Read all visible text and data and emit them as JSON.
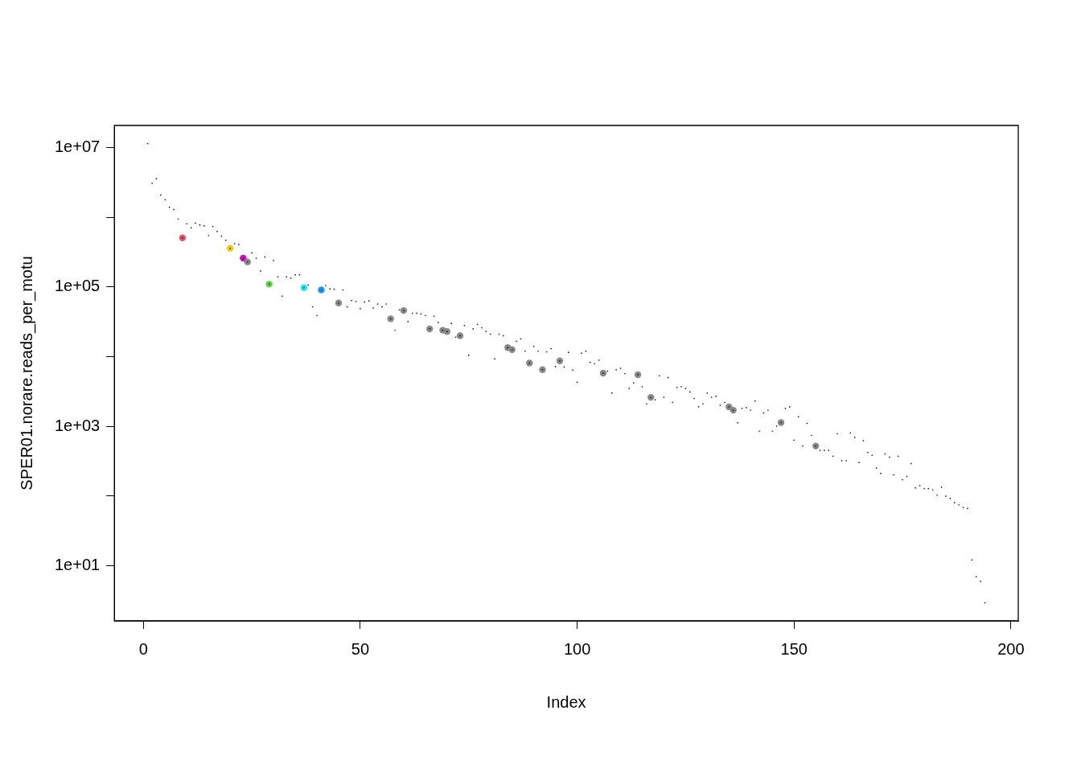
{
  "chart_data": {
    "type": "scatter",
    "xlabel": "Index",
    "ylabel": "SPER01.norare.reads_per_motu",
    "log": "y",
    "grid": false,
    "legend": false,
    "xlim": [
      -6.7,
      201.7
    ],
    "xticks": [
      0,
      50,
      100,
      150,
      200
    ],
    "ylim": [
      1.6,
      21000000
    ],
    "yticks": [
      {
        "value": 10,
        "label": "1e+01"
      },
      {
        "value": 100,
        "label": null
      },
      {
        "value": 1000,
        "label": "1e+03"
      },
      {
        "value": 10000,
        "label": null
      },
      {
        "value": 100000,
        "label": "1e+05"
      },
      {
        "value": 1000000,
        "label": null
      },
      {
        "value": 10000000,
        "label": "1e+07"
      }
    ],
    "series": [
      {
        "color": "#000000",
        "marker": "square",
        "x": [
          1,
          2,
          3,
          4,
          5,
          6,
          7,
          8,
          9,
          10,
          11,
          12,
          13,
          14,
          15,
          16,
          17,
          18,
          19,
          20,
          21,
          22,
          23,
          24,
          25,
          26,
          27,
          28,
          29,
          30,
          31,
          32,
          33,
          34,
          35,
          36,
          37,
          38,
          39,
          40,
          41,
          42,
          43,
          44,
          45,
          46,
          47,
          48,
          49,
          50,
          51,
          52,
          53,
          54,
          55,
          56,
          57,
          58,
          59,
          60,
          61,
          62,
          63,
          64,
          65,
          66,
          67,
          68,
          69,
          70,
          71,
          72,
          73,
          74,
          75,
          76,
          77,
          78,
          79,
          80,
          81,
          82,
          83,
          84,
          85,
          86,
          87,
          88,
          89,
          90,
          91,
          92,
          93,
          94,
          95,
          96,
          97,
          98,
          99,
          100,
          101,
          102,
          103,
          104,
          105,
          106,
          107,
          108,
          109,
          110,
          111,
          112,
          113,
          114,
          115,
          116,
          117,
          118,
          119,
          120,
          121,
          122,
          123,
          124,
          125,
          126,
          127,
          128,
          129,
          130,
          131,
          132,
          133,
          134,
          135,
          136,
          137,
          138,
          139,
          140,
          141,
          142,
          143,
          144,
          145,
          146,
          147,
          148,
          149,
          150,
          151,
          152,
          153,
          154,
          155,
          156,
          157,
          158,
          159,
          160,
          161,
          162,
          163,
          164,
          165,
          166,
          167,
          168,
          169,
          170,
          171,
          172,
          173,
          174,
          175,
          176,
          177,
          178,
          179,
          180,
          181,
          182,
          183,
          184,
          185,
          186,
          187,
          188,
          189,
          190,
          191,
          192,
          193,
          194
        ],
        "values": [
          11500000,
          3100000,
          3600000,
          2100000,
          1800000,
          1400000,
          1300000,
          950000,
          510000,
          810000,
          710000,
          830000,
          780000,
          760000,
          550000,
          740000,
          630000,
          540000,
          470000,
          360000,
          420000,
          410000,
          260000,
          230000,
          310000,
          260000,
          170000,
          270000,
          110000,
          240000,
          140000,
          74000,
          140000,
          135000,
          150000,
          150000,
          98000,
          107000,
          52000,
          39000,
          91000,
          105000,
          94000,
          93000,
          59000,
          91000,
          52000,
          64000,
          62000,
          49000,
          61000,
          63000,
          50000,
          57000,
          52000,
          57000,
          35000,
          24000,
          47000,
          46000,
          32000,
          42000,
          42000,
          41000,
          39000,
          25000,
          38000,
          31000,
          24000,
          23000,
          30000,
          19000,
          20000,
          28000,
          10500,
          25000,
          29000,
          26000,
          23000,
          21000,
          9300,
          21000,
          20000,
          13500,
          12600,
          16600,
          18000,
          12000,
          8100,
          14000,
          12000,
          6500,
          11700,
          13000,
          7200,
          8700,
          7100,
          11500,
          6400,
          4300,
          11200,
          12000,
          8300,
          7900,
          8900,
          5800,
          6200,
          3000,
          6500,
          6800,
          5700,
          3500,
          4200,
          5500,
          3700,
          2100,
          2600,
          2400,
          5300,
          2600,
          5000,
          2200,
          3600,
          3700,
          3500,
          3100,
          2500,
          1900,
          2100,
          3000,
          2600,
          2700,
          2000,
          2200,
          1900,
          1700,
          1120,
          1800,
          1850,
          1700,
          2300,
          850,
          1550,
          1700,
          850,
          1000,
          1130,
          1800,
          1900,
          630,
          1370,
          520,
          1100,
          740,
          520,
          450,
          450,
          450,
          370,
          780,
          320,
          320,
          800,
          690,
          300,
          620,
          420,
          380,
          250,
          210,
          400,
          360,
          200,
          370,
          170,
          190,
          290,
          130,
          140,
          127,
          127,
          122,
          102,
          133,
          99,
          92,
          80,
          74,
          68,
          66,
          12,
          6.9,
          5.9,
          2.9
        ]
      },
      {
        "marker": "circle",
        "x": [
          9,
          20,
          23,
          24,
          29,
          37,
          41,
          45,
          57,
          60,
          66,
          69,
          70,
          73,
          84,
          85,
          89,
          92,
          96,
          106,
          114,
          117,
          135,
          136,
          147,
          155
        ],
        "values": [
          510000,
          360000,
          260000,
          230000,
          110000,
          98000,
          91000,
          59000,
          35000,
          46000,
          25000,
          24000,
          23000,
          20000,
          13500,
          12600,
          8100,
          6500,
          8700,
          5800,
          5500,
          2600,
          1900,
          1700,
          1130,
          520
        ],
        "colors": [
          "#df536b",
          "#f5c710",
          "#cd0bbc",
          "#888888",
          "#61d04f",
          "#28e2e5",
          "#2297e6",
          "#888888",
          "#888888",
          "#888888",
          "#888888",
          "#888888",
          "#888888",
          "#888888",
          "#888888",
          "#888888",
          "#888888",
          "#888888",
          "#888888",
          "#888888",
          "#888888",
          "#888888",
          "#888888",
          "#888888",
          "#888888",
          "#888888"
        ]
      }
    ]
  }
}
